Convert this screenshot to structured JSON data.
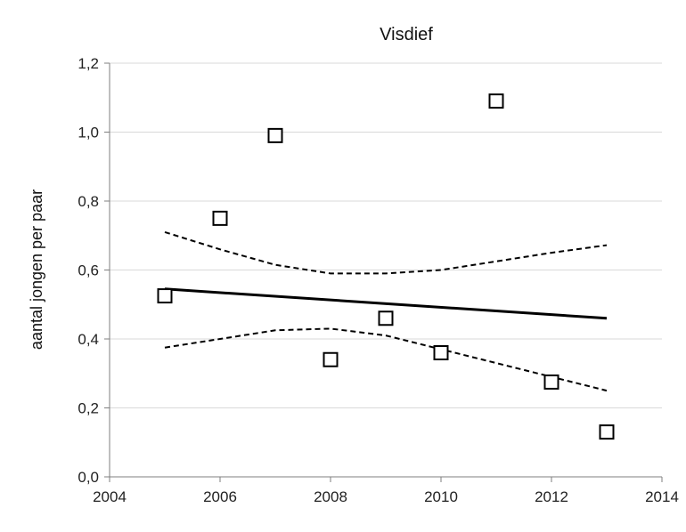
{
  "chart_data": {
    "type": "scatter",
    "title": "Visdief",
    "xlabel": "",
    "ylabel": "aantal jongen per paar",
    "xlim": [
      2004,
      2014
    ],
    "ylim": [
      0.0,
      1.2
    ],
    "x_ticks": [
      "2004",
      "2006",
      "2008",
      "2010",
      "2012",
      "2014"
    ],
    "y_ticks": [
      "0,0",
      "0,2",
      "0,4",
      "0,6",
      "0,8",
      "1,0",
      "1,2"
    ],
    "grid": "horizontal",
    "points": {
      "marker": "open-square",
      "x": [
        2005,
        2006,
        2007,
        2008,
        2009,
        2010,
        2011,
        2012,
        2013
      ],
      "y": [
        0.525,
        0.75,
        0.99,
        0.34,
        0.46,
        0.36,
        1.09,
        0.275,
        0.13
      ]
    },
    "trend": {
      "style": "solid",
      "x": [
        2005,
        2013
      ],
      "y": [
        0.545,
        0.46
      ]
    },
    "upper_ci": {
      "style": "dashed",
      "x": [
        2005,
        2006,
        2007,
        2008,
        2009,
        2010,
        2011,
        2012,
        2013
      ],
      "y": [
        0.71,
        0.66,
        0.615,
        0.59,
        0.59,
        0.6,
        0.625,
        0.65,
        0.672
      ]
    },
    "lower_ci": {
      "style": "dashed",
      "x": [
        2005,
        2006,
        2007,
        2008,
        2009,
        2010,
        2011,
        2012,
        2013
      ],
      "y": [
        0.375,
        0.4,
        0.425,
        0.43,
        0.41,
        0.37,
        0.33,
        0.29,
        0.25
      ]
    },
    "colors": {
      "marks": "#000000",
      "grid": "#d9d9d9",
      "axis": "#7f7f7f"
    }
  }
}
